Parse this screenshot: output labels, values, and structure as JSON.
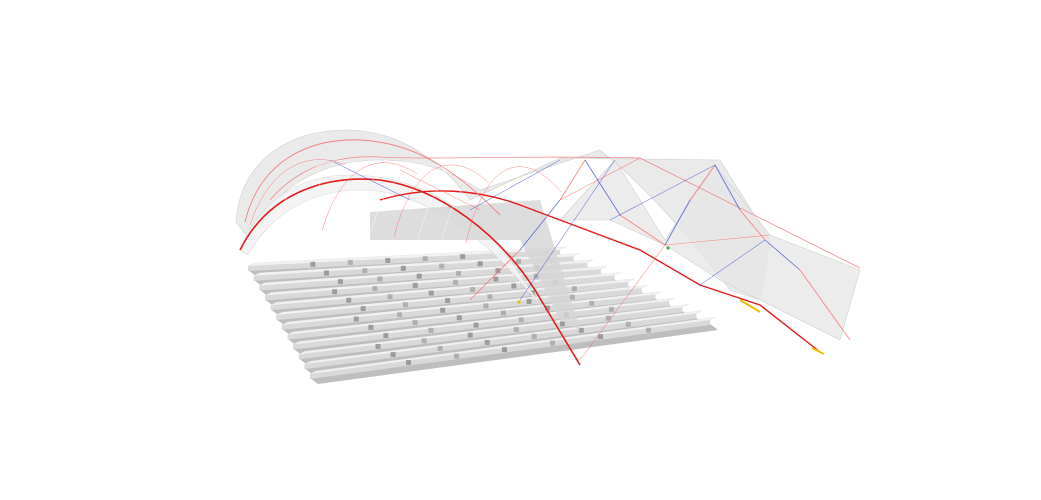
{
  "scene": {
    "subject": "arched-roof-structure-3d-model",
    "background": "#ffffff",
    "colors": {
      "canopy_fill": "#e6e6e6",
      "canopy_shade": "#d4d4d4",
      "canopy_light": "#f3f3f3",
      "arch_main": "#e41b1b",
      "arch_thin": "#f08080",
      "brace_blue": "#3a4fd0",
      "brace_red": "#ff6060",
      "seating_top": "#f2f2f2",
      "seating_front": "#d9d9d9",
      "seating_shadow": "#a8a8a8",
      "seating_mark": "#8c8c8c",
      "highlight_yellow": "#e8c000",
      "highlight_green": "#4caf50"
    },
    "components": {
      "arch_count": 3,
      "seating_tiers": 12
    }
  }
}
